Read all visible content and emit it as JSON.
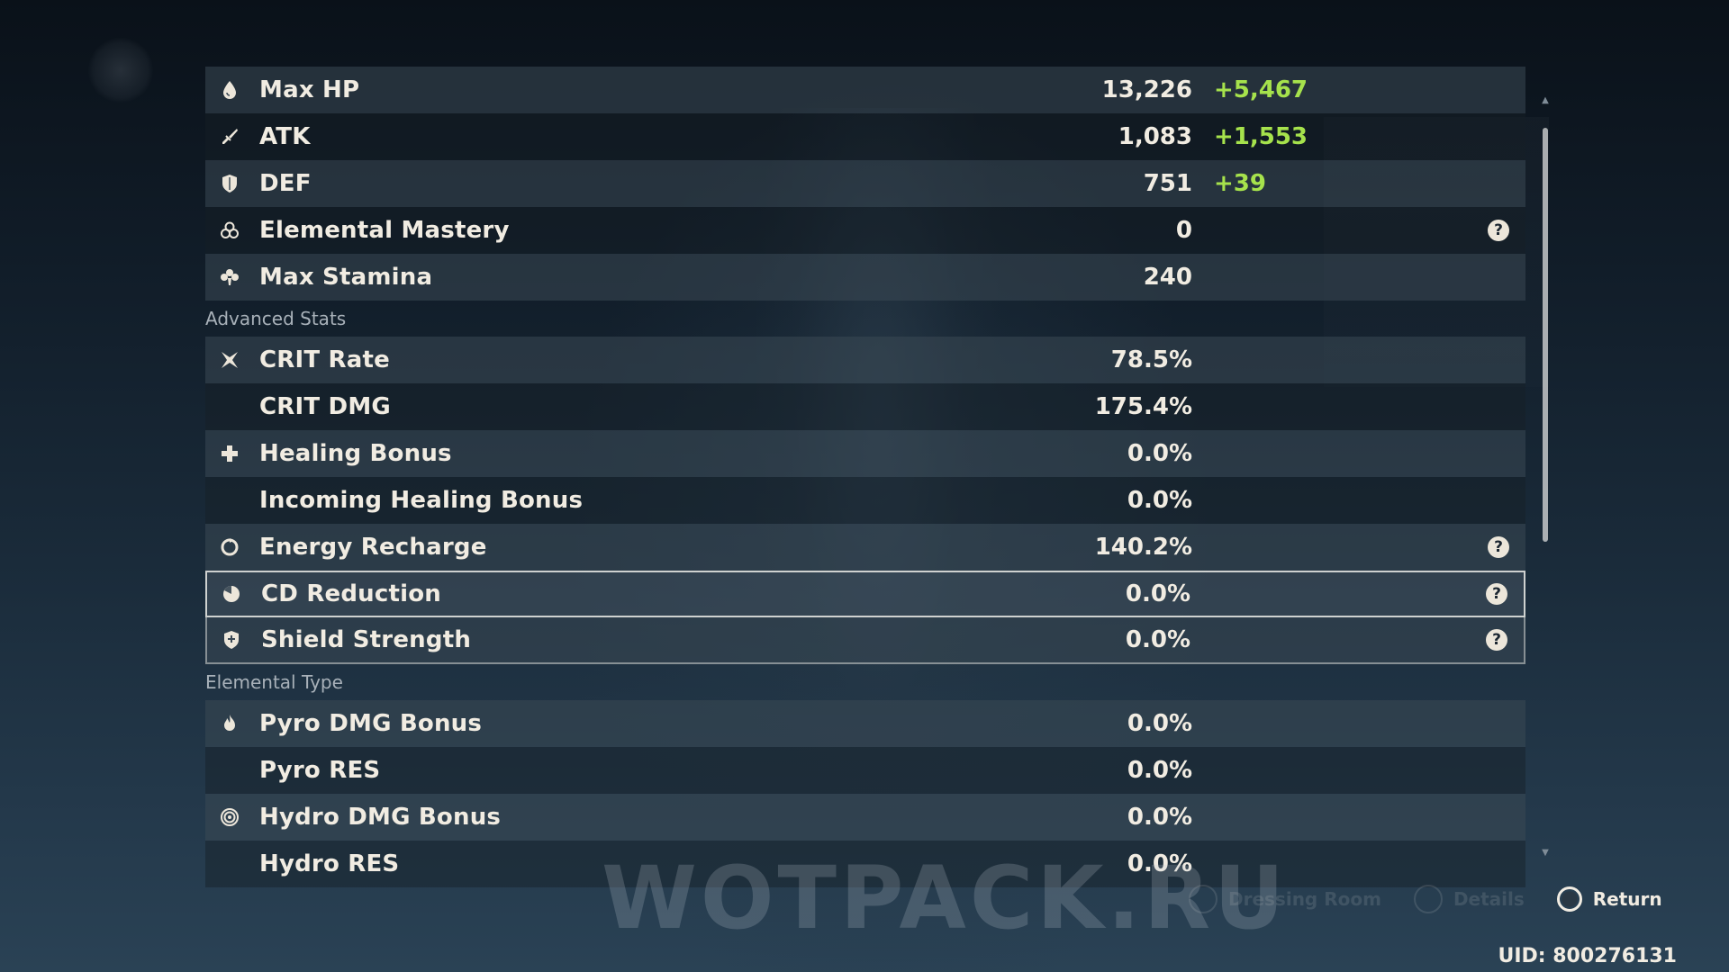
{
  "base_stats": [
    {
      "label": "Max HP",
      "value": "13,226",
      "bonus": "+5,467",
      "icon": "hp-drop-icon"
    },
    {
      "label": "ATK",
      "value": "1,083",
      "bonus": "+1,553",
      "icon": "sword-icon"
    },
    {
      "label": "DEF",
      "value": "751",
      "bonus": "+39",
      "icon": "shield-icon"
    },
    {
      "label": "Elemental Mastery",
      "value": "0",
      "help": "?",
      "icon": "mastery-icon"
    },
    {
      "label": "Max Stamina",
      "value": "240",
      "icon": "stamina-icon"
    }
  ],
  "advanced_header": "Advanced Stats",
  "advanced_stats": [
    {
      "label": "CRIT Rate",
      "value": "78.5%",
      "icon": "crit-icon"
    },
    {
      "label": "CRIT DMG",
      "value": "175.4%"
    },
    {
      "label": "Healing Bonus",
      "value": "0.0%",
      "icon": "cross-icon"
    },
    {
      "label": "Incoming Healing Bonus",
      "value": "0.0%"
    },
    {
      "label": "Energy Recharge",
      "value": "140.2%",
      "help": "?",
      "icon": "energy-icon"
    },
    {
      "label": "CD Reduction",
      "value": "0.0%",
      "help": "?",
      "icon": "cooldown-icon"
    },
    {
      "label": "Shield Strength",
      "value": "0.0%",
      "help": "?",
      "icon": "shield-strength-icon"
    }
  ],
  "elemental_header": "Elemental Type",
  "elemental_stats": [
    {
      "label": "Pyro DMG Bonus",
      "value": "0.0%",
      "icon": "pyro-icon"
    },
    {
      "label": "Pyro RES",
      "value": "0.0%"
    },
    {
      "label": "Hydro DMG Bonus",
      "value": "0.0%",
      "icon": "hydro-icon"
    },
    {
      "label": "Hydro RES",
      "value": "0.0%"
    }
  ],
  "footer": {
    "dressing_room": "Dressing Room",
    "details": "Details",
    "return_label": "Return",
    "uid": "UID: 800276131"
  },
  "watermark": "WOTPACK.RU",
  "colors": {
    "bonus_green": "#a6e24c",
    "text": "#f1ece2",
    "section_header": "#a8b1b9"
  }
}
